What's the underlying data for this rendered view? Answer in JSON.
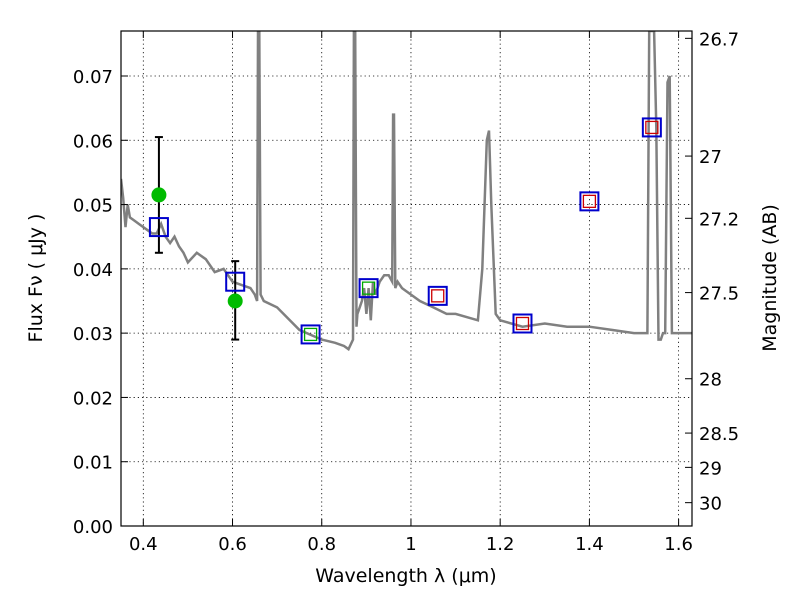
{
  "chart_data": {
    "type": "line",
    "xlabel": "Wavelength  λ (μm)",
    "ylabel": "Flux  Fν  ( μJy )",
    "ylabel2": "Magnitude (AB)",
    "xlim": [
      0.35,
      1.63
    ],
    "ylim": [
      0.0,
      0.077
    ],
    "x_ticks": [
      0.4,
      0.6,
      0.8,
      1.0,
      1.2,
      1.4,
      1.6
    ],
    "x_tick_labels": [
      "0.4",
      "0.6",
      "0.8",
      "1",
      "1.2",
      "1.4",
      "1.6"
    ],
    "y_ticks": [
      0.0,
      0.01,
      0.02,
      0.03,
      0.04,
      0.05,
      0.06,
      0.07
    ],
    "y_tick_labels": [
      "0.00",
      "0.01",
      "0.02",
      "0.03",
      "0.04",
      "0.05",
      "0.06",
      "0.07"
    ],
    "mag_ticks": [
      26.7,
      27,
      27.2,
      27.5,
      28,
      28.5,
      29,
      30
    ],
    "mag_tick_labels": [
      "26.7",
      "27",
      "27.2",
      "27.5",
      "28",
      "28.5",
      "29",
      "30"
    ],
    "grid": true,
    "colors": {
      "sed": "#808080",
      "observed": "#00bb00",
      "model_blue": "#0000cc",
      "model_red": "#cc0000",
      "model_green": "#00aa00",
      "errorbar": "#000000"
    },
    "sed_model": {
      "name": "",
      "x": [
        0.35,
        0.355,
        0.36,
        0.365,
        0.37,
        0.38,
        0.39,
        0.4,
        0.41,
        0.42,
        0.43,
        0.44,
        0.45,
        0.46,
        0.47,
        0.48,
        0.49,
        0.5,
        0.52,
        0.54,
        0.56,
        0.58,
        0.59,
        0.6,
        0.62,
        0.64,
        0.65,
        0.655,
        0.657,
        0.66,
        0.663,
        0.67,
        0.7,
        0.75,
        0.8,
        0.83,
        0.85,
        0.86,
        0.87,
        0.872,
        0.875,
        0.878,
        0.88,
        0.885,
        0.89,
        0.895,
        0.9,
        0.905,
        0.91,
        0.915,
        0.92,
        0.93,
        0.94,
        0.95,
        0.958,
        0.96,
        0.962,
        0.965,
        0.97,
        0.98,
        1.0,
        1.02,
        1.05,
        1.08,
        1.1,
        1.15,
        1.16,
        1.17,
        1.175,
        1.18,
        1.19,
        1.2,
        1.25,
        1.3,
        1.35,
        1.4,
        1.45,
        1.5,
        1.53,
        1.534,
        1.538,
        1.545,
        1.55,
        1.555,
        1.56,
        1.565,
        1.57,
        1.575,
        1.58,
        1.585,
        1.59,
        1.6,
        1.61,
        1.63
      ],
      "y": [
        0.054,
        0.051,
        0.0465,
        0.05,
        0.048,
        0.0475,
        0.047,
        0.0465,
        0.046,
        0.0455,
        0.0455,
        0.047,
        0.045,
        0.044,
        0.045,
        0.0435,
        0.0425,
        0.041,
        0.0425,
        0.0415,
        0.0395,
        0.04,
        0.039,
        0.038,
        0.0375,
        0.037,
        0.036,
        0.035,
        0.077,
        0.077,
        0.036,
        0.035,
        0.034,
        0.0305,
        0.029,
        0.0285,
        0.028,
        0.0275,
        0.029,
        0.077,
        0.077,
        0.031,
        0.033,
        0.034,
        0.035,
        0.037,
        0.033,
        0.037,
        0.032,
        0.038,
        0.036,
        0.038,
        0.039,
        0.039,
        0.038,
        0.064,
        0.064,
        0.037,
        0.038,
        0.037,
        0.036,
        0.035,
        0.034,
        0.033,
        0.033,
        0.032,
        0.04,
        0.06,
        0.0615,
        0.05,
        0.033,
        0.032,
        0.031,
        0.0315,
        0.031,
        0.031,
        0.0305,
        0.03,
        0.03,
        0.077,
        0.077,
        0.077,
        0.062,
        0.029,
        0.029,
        0.03,
        0.03,
        0.069,
        0.07,
        0.03,
        0.03,
        0.03,
        0.03,
        0.03
      ]
    },
    "observed_points": [
      {
        "x": 0.435,
        "y": 0.0515,
        "err_low": 0.0425,
        "err_high": 0.0605
      },
      {
        "x": 0.606,
        "y": 0.035,
        "err_low": 0.029,
        "err_high": 0.0412
      }
    ],
    "model_photometry": [
      {
        "x": 0.435,
        "y": 0.0465,
        "outline": "#0000cc"
      },
      {
        "x": 0.606,
        "y": 0.038,
        "outline": "#0000cc"
      },
      {
        "x": 0.775,
        "y": 0.0298,
        "outline": "#0000cc",
        "inner": "#00aa00"
      },
      {
        "x": 0.905,
        "y": 0.037,
        "outline": "#0000cc",
        "inner": "#00aa00"
      },
      {
        "x": 1.06,
        "y": 0.0358,
        "outline": "#0000cc",
        "inner": "#cc0000"
      },
      {
        "x": 1.25,
        "y": 0.0315,
        "outline": "#0000cc",
        "inner": "#cc0000"
      },
      {
        "x": 1.4,
        "y": 0.0505,
        "outline": "#0000cc",
        "inner": "#cc0000"
      },
      {
        "x": 1.54,
        "y": 0.062,
        "outline": "#0000cc",
        "inner": "#cc0000"
      }
    ]
  }
}
